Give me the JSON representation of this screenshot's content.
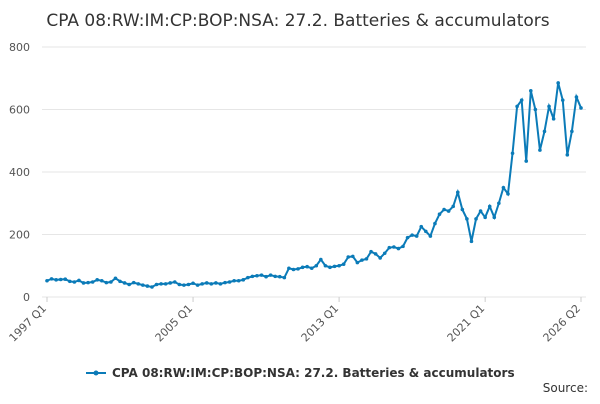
{
  "chart_data": {
    "type": "line",
    "title": "CPA 08:RW:IM:CP:BOP:NSA: 27.2. Batteries & accumulators",
    "source": "Source:",
    "categories": [
      "1997 Q1",
      null,
      null,
      null,
      null,
      null,
      null,
      null,
      null,
      null,
      null,
      null,
      null,
      null,
      null,
      null,
      null,
      null,
      null,
      null,
      null,
      null,
      null,
      null,
      null,
      null,
      null,
      null,
      null,
      null,
      null,
      null,
      "2005 Q1",
      null,
      null,
      null,
      null,
      null,
      null,
      null,
      null,
      null,
      null,
      null,
      null,
      null,
      null,
      null,
      null,
      null,
      null,
      null,
      null,
      null,
      null,
      null,
      null,
      null,
      null,
      null,
      null,
      null,
      null,
      null,
      "2013 Q1",
      null,
      null,
      null,
      null,
      null,
      null,
      null,
      null,
      null,
      null,
      null,
      null,
      null,
      null,
      null,
      null,
      null,
      null,
      null,
      null,
      null,
      null,
      null,
      null,
      null,
      null,
      null,
      null,
      null,
      null,
      null,
      "2021 Q1",
      null,
      null,
      null,
      null,
      null,
      null,
      null,
      null,
      null,
      null,
      null,
      null,
      null,
      null,
      null,
      null,
      null,
      null,
      null,
      null,
      "2026 Q2"
    ],
    "series": [
      {
        "name": "CPA 08:RW:IM:CP:BOP:NSA: 27.2. Batteries & accumulators",
        "color": "#0b7bb8",
        "values": [
          52,
          58,
          55,
          56,
          57,
          50,
          48,
          53,
          45,
          46,
          48,
          55,
          52,
          46,
          48,
          60,
          50,
          45,
          40,
          46,
          42,
          38,
          35,
          32,
          40,
          42,
          42,
          45,
          48,
          40,
          38,
          40,
          44,
          38,
          42,
          45,
          42,
          45,
          42,
          46,
          48,
          52,
          52,
          55,
          62,
          66,
          68,
          70,
          65,
          70,
          66,
          65,
          62,
          92,
          88,
          90,
          95,
          97,
          92,
          100,
          120,
          100,
          95,
          98,
          100,
          105,
          128,
          130,
          110,
          118,
          122,
          145,
          138,
          125,
          140,
          158,
          160,
          155,
          162,
          190,
          198,
          195,
          225,
          210,
          195,
          235,
          265,
          280,
          275,
          290,
          335,
          280,
          250,
          178,
          250,
          275,
          255,
          290,
          255,
          300,
          350,
          330,
          460,
          610,
          630,
          435,
          660,
          600,
          470,
          530,
          610,
          570,
          685,
          630,
          455,
          530,
          640,
          605
        ]
      }
    ],
    "ylim": [
      0,
      800
    ],
    "yticks": [
      0,
      200,
      400,
      600,
      800
    ],
    "grid": true,
    "legend": "bottom"
  }
}
